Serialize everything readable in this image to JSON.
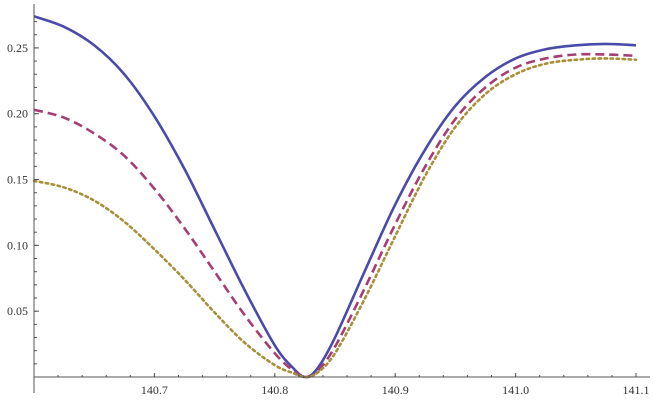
{
  "chart_data": {
    "type": "line",
    "title": "",
    "xlabel": "",
    "ylabel": "",
    "xlim": [
      140.6,
      141.1
    ],
    "ylim": [
      0.0,
      0.28
    ],
    "x_ticks": [
      140.7,
      140.8,
      140.9,
      141.0,
      141.1
    ],
    "x_tick_labels": [
      "140.7",
      "140.8",
      "140.9",
      "141.0",
      "141.1"
    ],
    "y_ticks": [
      0.05,
      0.1,
      0.15,
      0.2,
      0.25
    ],
    "y_tick_labels": [
      "0.05",
      "0.10",
      "0.15",
      "0.20",
      "0.25"
    ],
    "grid": false,
    "series": [
      {
        "style": "solid",
        "color": "#4a4aa8",
        "x": [
          140.6,
          140.625,
          140.65,
          140.675,
          140.7,
          140.725,
          140.75,
          140.775,
          140.8,
          140.815,
          140.825,
          140.835,
          140.85,
          140.875,
          140.9,
          140.925,
          140.95,
          140.975,
          141.0,
          141.025,
          141.05,
          141.075,
          141.1
        ],
        "values": [
          0.274,
          0.266,
          0.252,
          0.23,
          0.198,
          0.158,
          0.112,
          0.066,
          0.024,
          0.007,
          0.0,
          0.006,
          0.03,
          0.081,
          0.131,
          0.173,
          0.206,
          0.228,
          0.242,
          0.249,
          0.252,
          0.253,
          0.252
        ]
      },
      {
        "style": "dashed",
        "color": "#a63d73",
        "x": [
          140.6,
          140.625,
          140.65,
          140.675,
          140.7,
          140.725,
          140.75,
          140.775,
          140.8,
          140.815,
          140.825,
          140.835,
          140.85,
          140.875,
          140.9,
          140.925,
          140.95,
          140.975,
          141.0,
          141.025,
          141.05,
          141.075,
          141.1
        ],
        "values": [
          0.203,
          0.197,
          0.185,
          0.168,
          0.143,
          0.113,
          0.08,
          0.047,
          0.018,
          0.005,
          0.0,
          0.004,
          0.023,
          0.068,
          0.116,
          0.16,
          0.196,
          0.22,
          0.235,
          0.242,
          0.245,
          0.245,
          0.244
        ]
      },
      {
        "style": "dotted",
        "color": "#a8903a",
        "x": [
          140.6,
          140.625,
          140.65,
          140.675,
          140.7,
          140.725,
          140.75,
          140.775,
          140.8,
          140.815,
          140.825,
          140.835,
          140.85,
          140.875,
          140.9,
          140.925,
          140.95,
          140.975,
          141.0,
          141.025,
          141.05,
          141.075,
          141.1
        ],
        "values": [
          0.149,
          0.144,
          0.134,
          0.118,
          0.097,
          0.074,
          0.049,
          0.026,
          0.009,
          0.003,
          0.0,
          0.003,
          0.018,
          0.06,
          0.107,
          0.153,
          0.19,
          0.215,
          0.23,
          0.238,
          0.241,
          0.242,
          0.241
        ]
      }
    ]
  }
}
